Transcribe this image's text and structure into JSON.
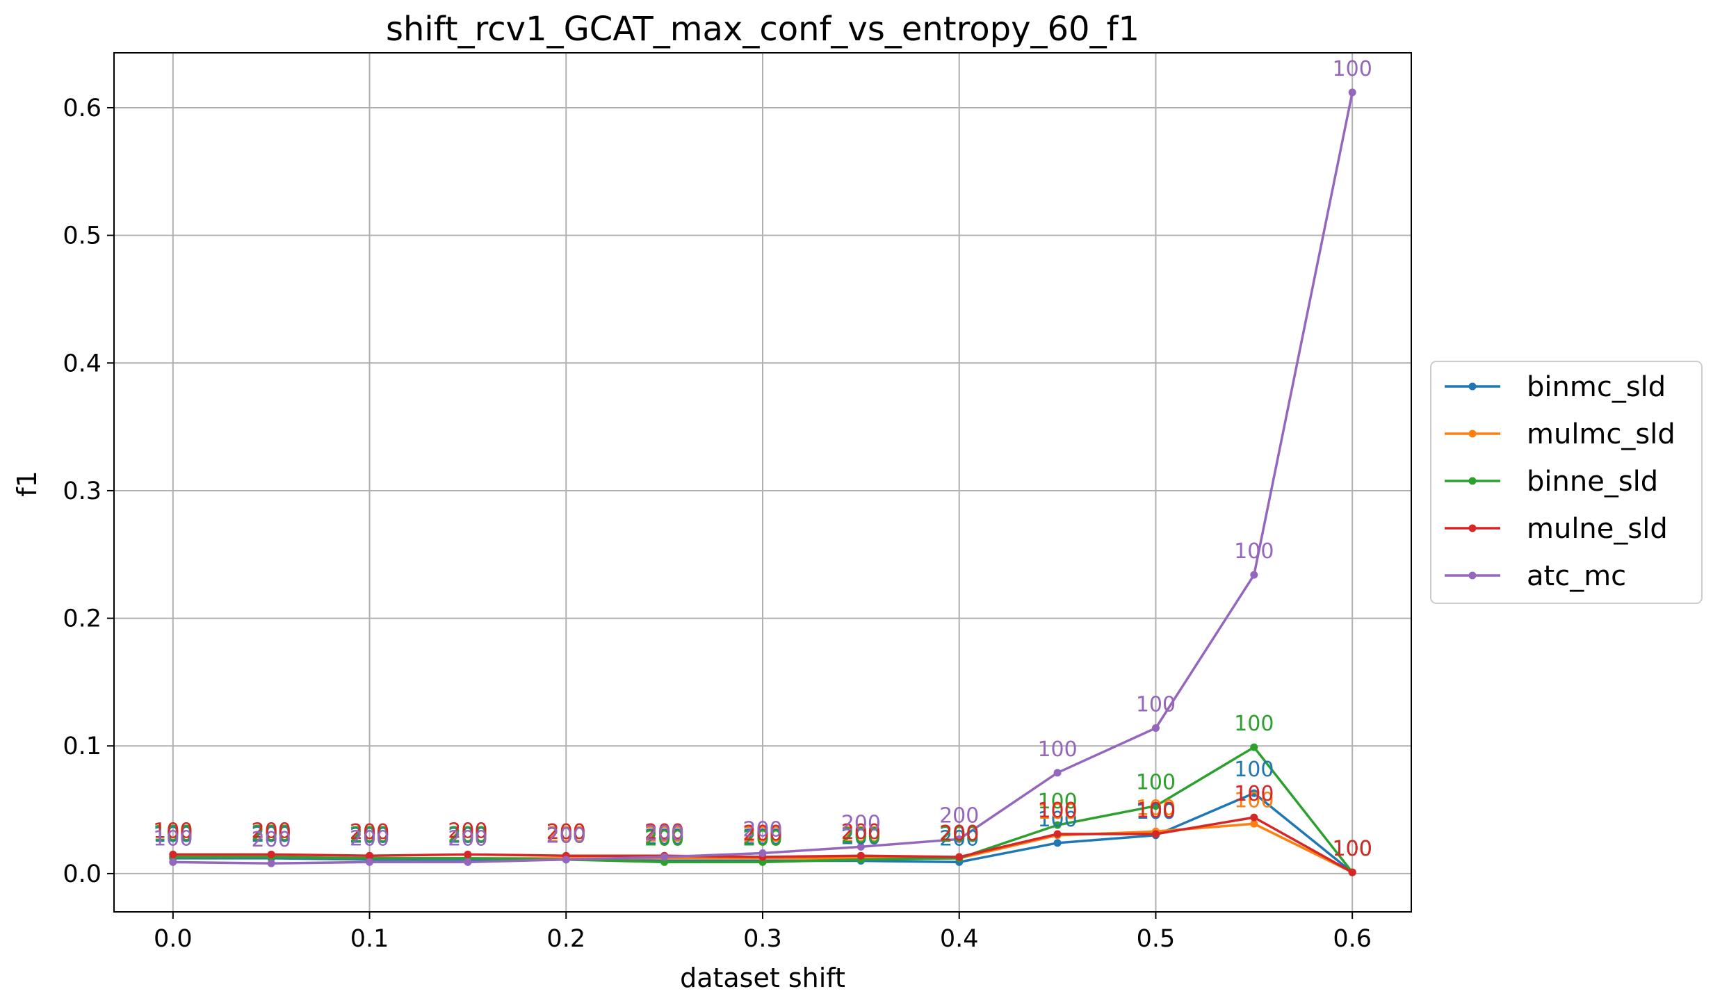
{
  "chart_data": {
    "type": "line",
    "title": "shift_rcv1_GCAT_max_conf_vs_entropy_60_f1",
    "xlabel": "dataset shift",
    "ylabel": "f1",
    "xlim": [
      -0.03,
      0.63
    ],
    "ylim": [
      -0.03,
      0.643
    ],
    "xticks": [
      0.0,
      0.1,
      0.2,
      0.3,
      0.4,
      0.5,
      0.6
    ],
    "xtick_labels": [
      "0.0",
      "0.1",
      "0.2",
      "0.3",
      "0.4",
      "0.5",
      "0.6"
    ],
    "yticks": [
      0.0,
      0.1,
      0.2,
      0.3,
      0.4,
      0.5,
      0.6
    ],
    "ytick_labels": [
      "0.0",
      "0.1",
      "0.2",
      "0.3",
      "0.4",
      "0.5",
      "0.6"
    ],
    "grid": true,
    "legend_position": "right, outside",
    "x": [
      0.0,
      0.05,
      0.1,
      0.15,
      0.2,
      0.25,
      0.3,
      0.35,
      0.4,
      0.45,
      0.5,
      0.55,
      0.6
    ],
    "series": [
      {
        "name": "binmc_sld",
        "color": "#1f77b4",
        "values": [
          0.012,
          0.012,
          0.011,
          0.011,
          0.011,
          0.01,
          0.01,
          0.01,
          0.009,
          0.024,
          0.03,
          0.063,
          0.001
        ],
        "labels": [
          "100",
          "200",
          "200",
          "200",
          "200",
          "200",
          "200",
          "200",
          "200",
          "100",
          "100",
          "100",
          "100"
        ]
      },
      {
        "name": "mulmc_sld",
        "color": "#ff7f0e",
        "values": [
          0.013,
          0.013,
          0.012,
          0.012,
          0.012,
          0.012,
          0.012,
          0.012,
          0.012,
          0.03,
          0.033,
          0.039,
          0.001
        ],
        "labels": [
          "100",
          "200",
          "200",
          "200",
          "200",
          "200",
          "200",
          "200",
          "200",
          "100",
          "100",
          "100",
          "100"
        ]
      },
      {
        "name": "binne_sld",
        "color": "#2ca02c",
        "values": [
          0.013,
          0.013,
          0.012,
          0.012,
          0.011,
          0.009,
          0.009,
          0.011,
          0.012,
          0.038,
          0.053,
          0.099,
          0.001
        ],
        "labels": [
          "100",
          "200",
          "200",
          "200",
          "200",
          "200",
          "200",
          "200",
          "200",
          "100",
          "100",
          "100",
          "100"
        ]
      },
      {
        "name": "mulne_sld",
        "color": "#d62728",
        "values": [
          0.015,
          0.015,
          0.014,
          0.015,
          0.014,
          0.014,
          0.013,
          0.014,
          0.013,
          0.031,
          0.031,
          0.044,
          0.001
        ],
        "labels": [
          "100",
          "200",
          "200",
          "200",
          "200",
          "200",
          "200",
          "200",
          "200",
          "100",
          "100",
          "100",
          "100"
        ]
      },
      {
        "name": "atc_mc",
        "color": "#9467bd",
        "values": [
          0.009,
          0.008,
          0.009,
          0.009,
          0.011,
          0.013,
          0.016,
          0.021,
          0.027,
          0.079,
          0.114,
          0.234,
          0.612
        ],
        "labels": [
          "100",
          "200",
          "200",
          "200",
          "200",
          "200",
          "200",
          "200",
          "200",
          "100",
          "100",
          "100",
          "100"
        ]
      }
    ]
  }
}
